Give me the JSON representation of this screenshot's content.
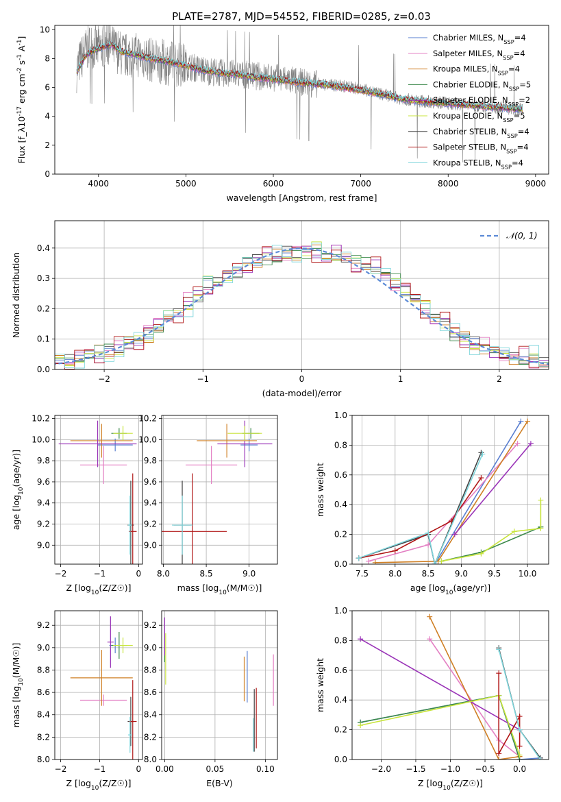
{
  "figure": {
    "title": "PLATE=2787, MJD=54552, FIBERID=0285, z=0.03"
  },
  "colors": {
    "Chabrier MILES": "#5a7fd0",
    "Salpeter MILES": "#e37fc3",
    "Kroupa MILES": "#cf7f24",
    "Chabrier ELODIE": "#3d8a4c",
    "Salpeter ELODIE": "#9a34b8",
    "Kroupa ELODIE": "#c8e43c",
    "Chabrier STELIB": "#444444",
    "Salpeter STELIB": "#b01616",
    "Kroupa STELIB": "#7fd6dc",
    "data": "#808080",
    "normal": "#5b8ad6"
  },
  "chart_data": [
    {
      "id": "spectrum",
      "type": "line",
      "xlabel": "wavelength [Angstrom, rest frame]",
      "ylabel": "Flux [f_λ10^-17 erg cm^-2 s^-1 A^-1]",
      "xlim": [
        3500,
        9150
      ],
      "ylim": [
        0,
        10.3
      ],
      "xticks": [
        4000,
        5000,
        6000,
        7000,
        8000,
        9000
      ],
      "yticks": [
        0,
        2,
        4,
        6,
        8,
        10
      ],
      "grid": false,
      "legend_position": "top-right",
      "data_spectrum": {
        "x": [
          3750,
          3800,
          3850,
          3900,
          3950,
          4000,
          4100,
          4200,
          4300,
          4400,
          4500,
          4600,
          4700,
          4800,
          4900,
          5000,
          5200,
          5400,
          5600,
          5800,
          6000,
          6200,
          6400,
          6600,
          6800,
          7000,
          7200,
          7400,
          7600,
          7800,
          8000,
          8200,
          8400,
          8600,
          8800,
          8850
        ],
        "y": [
          7.2,
          8.0,
          8.5,
          8.9,
          8.8,
          8.7,
          9.0,
          8.6,
          8.2,
          8.3,
          8.2,
          7.9,
          7.8,
          7.7,
          7.6,
          7.5,
          7.2,
          7.0,
          6.9,
          6.8,
          6.7,
          6.5,
          6.3,
          6.2,
          6.1,
          5.9,
          5.6,
          5.3,
          5.1,
          5.0,
          4.9,
          4.8,
          4.7,
          4.6,
          4.5,
          4.5
        ]
      },
      "series": [
        {
          "name": "Chabrier MILES, N_SSP=4",
          "values_ref": "model"
        },
        {
          "name": "Salpeter MILES, N_SSP=4",
          "values_ref": "model"
        },
        {
          "name": "Kroupa MILES, N_SSP=4",
          "values_ref": "model"
        },
        {
          "name": "Chabrier ELODIE, N_SSP=5",
          "values_ref": "model"
        },
        {
          "name": "Salpeter ELODIE, N_SSP=2",
          "values_ref": "model"
        },
        {
          "name": "Kroupa ELODIE, N_SSP=5",
          "values_ref": "model"
        },
        {
          "name": "Chabrier STELIB, N_SSP=4",
          "values_ref": "model"
        },
        {
          "name": "Salpeter STELIB, N_SSP=4",
          "values_ref": "model"
        },
        {
          "name": "Kroupa STELIB, N_SSP=4",
          "values_ref": "model"
        }
      ],
      "model": {
        "x": [
          3750,
          3850,
          3950,
          4050,
          4150,
          4250,
          4400,
          4600,
          4800,
          5000,
          5200,
          5400,
          5600,
          5800,
          6000,
          6200,
          6400,
          6600,
          6800,
          7000,
          7200,
          7400,
          7600,
          7800,
          8000,
          8200,
          8400,
          8600,
          8800,
          8850
        ],
        "y": [
          7.0,
          8.2,
          8.6,
          8.8,
          9.0,
          8.5,
          8.3,
          8.0,
          7.8,
          7.5,
          7.2,
          7.0,
          6.9,
          6.7,
          6.6,
          6.4,
          6.3,
          6.2,
          6.0,
          5.8,
          5.6,
          5.3,
          5.1,
          5.0,
          4.9,
          4.8,
          4.7,
          4.6,
          4.5,
          4.5
        ]
      },
      "legend": [
        "Chabrier MILES, N_SSP=4",
        "Salpeter MILES, N_SSP=4",
        "Kroupa MILES, N_SSP=4",
        "Chabrier ELODIE, N_SSP=5",
        "Salpeter ELODIE, N_SSP=2",
        "Kroupa ELODIE, N_SSP=5",
        "Chabrier STELIB, N_SSP=4",
        "Salpeter STELIB, N_SSP=4",
        "Kroupa STELIB, N_SSP=4"
      ]
    },
    {
      "id": "residuals",
      "type": "line",
      "xlabel": "(data-model)/error",
      "ylabel": "Normed distribution",
      "xlim": [
        -2.5,
        2.5
      ],
      "ylim": [
        0,
        0.49
      ],
      "xticks": [
        -2,
        -1,
        0,
        1,
        2
      ],
      "yticks": [
        0.0,
        0.1,
        0.2,
        0.3,
        0.4
      ],
      "grid": true,
      "legend_position": "top-right",
      "legend": "N(0,1)",
      "histogram": {
        "bin_width": 0.1,
        "centers": [
          -2.45,
          -2.35,
          -2.25,
          -2.15,
          -2.05,
          -1.95,
          -1.85,
          -1.75,
          -1.65,
          -1.55,
          -1.45,
          -1.35,
          -1.25,
          -1.15,
          -1.05,
          -0.95,
          -0.85,
          -0.75,
          -0.65,
          -0.55,
          -0.45,
          -0.35,
          -0.25,
          -0.15,
          -0.05,
          0.05,
          0.15,
          0.25,
          0.35,
          0.45,
          0.55,
          0.65,
          0.75,
          0.85,
          0.95,
          1.05,
          1.15,
          1.25,
          1.35,
          1.45,
          1.55,
          1.65,
          1.75,
          1.85,
          1.95,
          2.05,
          2.15,
          2.25,
          2.35,
          2.45
        ],
        "values": [
          0.025,
          0.03,
          0.04,
          0.045,
          0.055,
          0.06,
          0.07,
          0.085,
          0.1,
          0.12,
          0.14,
          0.17,
          0.19,
          0.22,
          0.25,
          0.28,
          0.29,
          0.31,
          0.33,
          0.35,
          0.36,
          0.37,
          0.37,
          0.38,
          0.38,
          0.385,
          0.39,
          0.38,
          0.375,
          0.37,
          0.36,
          0.35,
          0.33,
          0.31,
          0.29,
          0.26,
          0.23,
          0.2,
          0.17,
          0.15,
          0.12,
          0.1,
          0.085,
          0.07,
          0.06,
          0.05,
          0.045,
          0.04,
          0.035,
          0.03
        ],
        "offsets": [
          0.0,
          -0.02,
          0.015,
          -0.01,
          0.02,
          -0.015,
          0.01,
          -0.025,
          0.03
        ]
      }
    },
    {
      "id": "z-age",
      "type": "scatter",
      "xlabel": "Z [log10(Z/Z☉)]",
      "ylabel": "age  [log10(age/yr)]",
      "xlim": [
        -2.15,
        0.1
      ],
      "ylim": [
        8.82,
        10.23
      ],
      "xticks": [
        -2,
        -1,
        0
      ],
      "yticks": [
        9.0,
        9.2,
        9.4,
        9.6,
        9.8,
        10.0,
        10.2
      ],
      "grid": true,
      "points": [
        {
          "s": 0,
          "x": -0.6,
          "y": 9.95,
          "xe": 0.45,
          "ye": 0.06
        },
        {
          "s": 1,
          "x": -0.9,
          "y": 9.76,
          "xe": 0.6,
          "ye": 0.18
        },
        {
          "s": 2,
          "x": -0.95,
          "y": 9.99,
          "xe": 0.8,
          "ye": 0.16
        },
        {
          "s": 3,
          "x": -0.5,
          "y": 10.06,
          "xe": 0.2,
          "ye": 0.05
        },
        {
          "s": 4,
          "x": -1.05,
          "y": 9.96,
          "xe": 1.0,
          "ye": 0.22
        },
        {
          "s": 5,
          "x": -0.4,
          "y": 10.06,
          "xe": 0.25,
          "ye": 0.07
        },
        {
          "s": 6,
          "x": -0.2,
          "y": 9.19,
          "xe": 0.08,
          "ye": 0.42
        },
        {
          "s": 7,
          "x": -0.15,
          "y": 9.13,
          "xe": 0.1,
          "ye": 0.55
        },
        {
          "s": 8,
          "x": -0.22,
          "y": 9.19,
          "xe": 0.05,
          "ye": 0.28
        }
      ]
    },
    {
      "id": "mass-age",
      "type": "scatter",
      "xlabel": "mass [log10(M/M☉)]",
      "ylabel": "",
      "xlim": [
        7.98,
        9.33
      ],
      "ylim": [
        8.82,
        10.23
      ],
      "xticks": [
        8.0,
        8.5,
        9.0
      ],
      "yticks": [
        9.0,
        9.2,
        9.4,
        9.6,
        9.8,
        10.0,
        10.2
      ],
      "grid": true,
      "points": [
        {
          "s": 0,
          "x": 9.0,
          "y": 9.95,
          "xe": 0.1,
          "ye": 0.06
        },
        {
          "s": 1,
          "x": 8.56,
          "y": 9.76,
          "xe": 0.3,
          "ye": 0.18
        },
        {
          "s": 2,
          "x": 8.74,
          "y": 9.99,
          "xe": 0.35,
          "ye": 0.16
        },
        {
          "s": 3,
          "x": 9.02,
          "y": 10.06,
          "xe": 0.1,
          "ye": 0.05
        },
        {
          "s": 4,
          "x": 8.95,
          "y": 9.96,
          "xe": 0.32,
          "ye": 0.22
        },
        {
          "s": 5,
          "x": 8.95,
          "y": 10.06,
          "xe": 0.2,
          "ye": 0.07
        },
        {
          "s": 6,
          "x": 8.22,
          "y": 9.19,
          "xe": 0.1,
          "ye": 0.42
        },
        {
          "s": 7,
          "x": 8.34,
          "y": 9.13,
          "xe": 0.4,
          "ye": 0.55
        },
        {
          "s": 8,
          "x": 8.22,
          "y": 9.19,
          "xe": 0.12,
          "ye": 0.28
        }
      ]
    },
    {
      "id": "age-weight",
      "type": "line",
      "xlabel": "age  [log10(age/yr)]",
      "ylabel": "mass weight",
      "xlim": [
        7.35,
        10.32
      ],
      "ylim": [
        0,
        1.0
      ],
      "xticks": [
        7.5,
        8.0,
        8.5,
        9.0,
        9.5,
        10.0
      ],
      "yticks": [
        0.0,
        0.2,
        0.4,
        0.6,
        0.8,
        1.0
      ],
      "grid": true,
      "series_points": [
        {
          "s": 0,
          "x": [
            7.45,
            8.5,
            8.6,
            9.9
          ],
          "y": [
            0.04,
            0.2,
            0.0,
            0.96
          ]
        },
        {
          "s": 1,
          "x": [
            7.6,
            8.5,
            9.85
          ],
          "y": [
            0.02,
            0.13,
            0.81
          ]
        },
        {
          "s": 2,
          "x": [
            7.7,
            8.65,
            10.0
          ],
          "y": [
            0.01,
            0.02,
            0.96
          ]
        },
        {
          "s": 3,
          "x": [
            8.7,
            9.3,
            10.2
          ],
          "y": [
            0.02,
            0.08,
            0.25
          ]
        },
        {
          "s": 4,
          "x": [
            8.9,
            10.05
          ],
          "y": [
            0.2,
            0.81
          ]
        },
        {
          "s": 5,
          "x": [
            8.7,
            9.3,
            9.8,
            10.2,
            10.2
          ],
          "y": [
            0.02,
            0.07,
            0.22,
            0.24,
            0.43
          ]
        },
        {
          "s": 6,
          "x": [
            7.45,
            8.5,
            8.6,
            9.3
          ],
          "y": [
            0.04,
            0.2,
            0.0,
            0.75
          ]
        },
        {
          "s": 7,
          "x": [
            7.45,
            8.0,
            8.85,
            9.3
          ],
          "y": [
            0.04,
            0.09,
            0.29,
            0.58
          ]
        },
        {
          "s": 8,
          "x": [
            7.45,
            8.5,
            8.6,
            9.32
          ],
          "y": [
            0.04,
            0.21,
            0.0,
            0.74
          ]
        }
      ]
    },
    {
      "id": "z-mass",
      "type": "scatter",
      "xlabel": "Z [log10(Z/Z☉)]",
      "ylabel": "mass [log10(M/M☉)]",
      "xlim": [
        -2.15,
        0.1
      ],
      "ylim": [
        8.0,
        9.33
      ],
      "xticks": [
        -2,
        -1,
        0
      ],
      "yticks": [
        8.0,
        8.2,
        8.4,
        8.6,
        8.8,
        9.0,
        9.2
      ],
      "grid": true,
      "points": [
        {
          "s": 0,
          "x": -0.6,
          "y": 9.02,
          "xe": 0.15,
          "ye": 0.07
        },
        {
          "s": 1,
          "x": -0.9,
          "y": 8.53,
          "xe": 0.6,
          "ye": 0.05
        },
        {
          "s": 2,
          "x": -0.95,
          "y": 8.73,
          "xe": 0.8,
          "ye": 0.25
        },
        {
          "s": 3,
          "x": -0.5,
          "y": 9.02,
          "xe": 0.2,
          "ye": 0.12
        },
        {
          "s": 4,
          "x": -0.72,
          "y": 9.05,
          "xe": 0.08,
          "ye": 0.23
        },
        {
          "s": 5,
          "x": -0.4,
          "y": 9.02,
          "xe": 0.25,
          "ye": 0.07
        },
        {
          "s": 6,
          "x": -0.2,
          "y": 8.34,
          "xe": 0.08,
          "ye": 0.22
        },
        {
          "s": 7,
          "x": -0.15,
          "y": 8.34,
          "xe": 0.1,
          "ye": 0.37
        },
        {
          "s": 8,
          "x": -0.22,
          "y": 8.22,
          "xe": 0.05,
          "ye": 0.16
        }
      ]
    },
    {
      "id": "ebv-mass",
      "type": "scatter",
      "xlabel": "E(B-V)",
      "ylabel": "",
      "xlim": [
        -0.003,
        0.112
      ],
      "ylim": [
        8.0,
        9.33
      ],
      "xticks": [
        0.0,
        0.05,
        0.1
      ],
      "yticks": [
        8.0,
        8.2,
        8.4,
        8.6,
        8.8,
        9.0,
        9.2
      ],
      "grid": true,
      "points": [
        {
          "s": 0,
          "x": 0.082,
          "y": 8.74,
          "xe": 0,
          "ye": 0.23
        },
        {
          "s": 1,
          "x": 0.108,
          "y": 8.71,
          "xe": 0,
          "ye": 0.23
        },
        {
          "s": 2,
          "x": 0.079,
          "y": 8.72,
          "xe": 0,
          "ye": 0.2
        },
        {
          "s": 3,
          "x": 0.0,
          "y": 9.07,
          "xe": 0,
          "ye": 0.2
        },
        {
          "s": 4,
          "x": 0.0,
          "y": 9.1,
          "xe": 0,
          "ye": 0.17
        },
        {
          "s": 5,
          "x": 0.001,
          "y": 8.9,
          "xe": 0,
          "ye": 0.23
        },
        {
          "s": 6,
          "x": 0.089,
          "y": 8.35,
          "xe": 0,
          "ye": 0.28
        },
        {
          "s": 7,
          "x": 0.091,
          "y": 8.37,
          "xe": 0,
          "ye": 0.27
        },
        {
          "s": 8,
          "x": 0.088,
          "y": 8.22,
          "xe": 0,
          "ye": 0.15
        }
      ]
    },
    {
      "id": "z-weight",
      "type": "line",
      "xlabel": "Z [log10(Z/Z☉)]",
      "ylabel": "mass weight",
      "xlim": [
        -2.42,
        0.42
      ],
      "ylim": [
        0,
        1.0
      ],
      "xticks": [
        -2.0,
        -1.5,
        -1.0,
        -0.5,
        0.0
      ],
      "yticks": [
        0.0,
        0.2,
        0.4,
        0.6,
        0.8,
        1.0
      ],
      "grid": true,
      "series_points": [
        {
          "s": 0,
          "x": [
            -2.3,
            -0.3,
            0.0,
            0.3
          ],
          "y": [
            0.25,
            0.43,
            0.0,
            0.01
          ]
        },
        {
          "s": 1,
          "x": [
            -1.3,
            -0.3,
            0.0
          ],
          "y": [
            0.81,
            0.13,
            0.02
          ]
        },
        {
          "s": 2,
          "x": [
            -1.3,
            -0.3,
            0.0
          ],
          "y": [
            0.96,
            0.0,
            0.02
          ]
        },
        {
          "s": 3,
          "x": [
            -2.3,
            -0.3,
            0.0
          ],
          "y": [
            0.25,
            0.43,
            0.0
          ]
        },
        {
          "s": 4,
          "x": [
            -2.3,
            0.0
          ],
          "y": [
            0.81,
            0.2
          ]
        },
        {
          "s": 5,
          "x": [
            -2.3,
            -0.3,
            0.0
          ],
          "y": [
            0.23,
            0.43,
            0.03
          ]
        },
        {
          "s": 6,
          "x": [
            -0.3,
            0.0,
            0.3
          ],
          "y": [
            0.75,
            0.2,
            0.01
          ]
        },
        {
          "s": 7,
          "x": [
            -0.3,
            -0.3,
            0.0,
            0.0
          ],
          "y": [
            0.58,
            0.04,
            0.29,
            0.09
          ]
        },
        {
          "s": 8,
          "x": [
            -0.3,
            0.0,
            0.3
          ],
          "y": [
            0.74,
            0.2,
            0.0
          ]
        }
      ]
    }
  ]
}
